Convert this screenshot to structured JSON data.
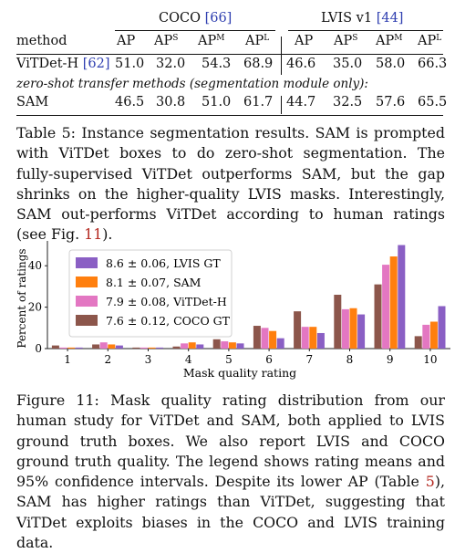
{
  "table": {
    "coco_header": "COCO",
    "coco_cite": "[66]",
    "lvis_header": "LVIS v1",
    "lvis_cite": "[44]",
    "col_method": "method",
    "col_ap": "AP",
    "col_aps": "AP",
    "col_aps_sup": "S",
    "col_apm": "AP",
    "col_apm_sup": "M",
    "col_apl": "AP",
    "col_apl_sup": "L",
    "rows": [
      {
        "method": "ViTDet-H",
        "cite": "[62]",
        "coco": [
          "51.0",
          "32.0",
          "54.3",
          "68.9"
        ],
        "lvis": [
          "46.6",
          "35.0",
          "58.0",
          "66.3"
        ]
      },
      {
        "method": "SAM",
        "cite": "",
        "coco": [
          "46.5",
          "30.8",
          "51.0",
          "61.7"
        ],
        "lvis": [
          "44.7",
          "32.5",
          "57.6",
          "65.5"
        ]
      }
    ],
    "subheader": "zero-shot transfer methods (segmentation module only):"
  },
  "table_caption": {
    "label": "Table 5:",
    "text_before": " Instance segmentation results. SAM is prompted with ViTDet boxes to do zero-shot segmentation. The fully-supervised ViTDet outperforms SAM, but the gap shrinks on the higher-quality LVIS masks. Interestingly, SAM out-performs ViTDet according to human ratings (see Fig. ",
    "ref": "11",
    "text_after": ")."
  },
  "chart_data": {
    "type": "bar",
    "categories": [
      "1",
      "2",
      "3",
      "4",
      "5",
      "6",
      "7",
      "8",
      "9",
      "10"
    ],
    "series": [
      {
        "name": "8.6 ± 0.06, LVIS GT",
        "color": "#8a5fc4",
        "values": [
          0.5,
          1.5,
          0.5,
          2.0,
          2.5,
          5.0,
          7.5,
          16.5,
          50.0,
          20.5
        ]
      },
      {
        "name": "8.1 ± 0.07, SAM",
        "color": "#ff7f0e",
        "values": [
          0.5,
          2.0,
          0.5,
          3.0,
          3.0,
          8.5,
          10.5,
          19.5,
          44.5,
          13.0
        ]
      },
      {
        "name": "7.9 ± 0.08, ViTDet-H",
        "color": "#e377c2",
        "values": [
          0.5,
          3.0,
          0.5,
          2.5,
          3.5,
          10.0,
          10.5,
          19.0,
          40.5,
          11.5
        ]
      },
      {
        "name": "7.6 ± 0.12, COCO GT",
        "color": "#8c564b",
        "values": [
          1.5,
          2.0,
          0.5,
          1.0,
          4.5,
          11.0,
          18.0,
          26.0,
          31.0,
          6.0
        ]
      }
    ],
    "xlabel": "Mask quality rating",
    "ylabel": "Percent of ratings",
    "yticks": [
      0,
      20,
      40
    ],
    "ylim": [
      0,
      52
    ],
    "legend_placement": "top-left"
  },
  "figure_caption": {
    "label": "Figure 11:",
    "text_before": " Mask quality rating distribution from our human study for ViTDet and SAM, both applied to LVIS ground truth boxes. We also report LVIS and COCO ground truth quality. The legend shows rating means and 95% confidence intervals. Despite its lower AP (Table ",
    "ref": "5",
    "text_after": "), SAM has higher ratings than ViTDet, suggesting that ViTDet exploits biases in the COCO and LVIS training data."
  }
}
